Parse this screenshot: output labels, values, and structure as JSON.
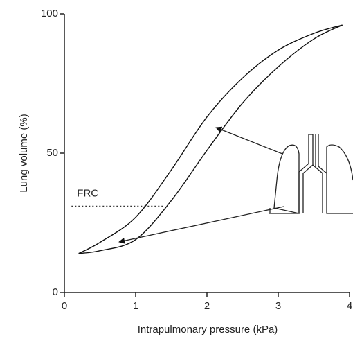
{
  "chart_data": {
    "type": "line",
    "x_label": "Intrapulmonary pressure (kPa)",
    "y_label": "Lung volume (%)",
    "x": [
      0.2,
      0.5,
      1,
      1.5,
      2,
      2.5,
      3,
      3.5,
      3.9
    ],
    "series": [
      {
        "color": "#111111",
        "values": [
          14,
          18,
          27,
          44,
          63,
          77,
          87,
          93,
          96
        ]
      },
      {
        "color": "#111111",
        "values": [
          14,
          15,
          19,
          33,
          51,
          68,
          81,
          91,
          96
        ]
      }
    ],
    "xlim": [
      0,
      4
    ],
    "xticks": [
      0,
      1,
      2,
      3,
      4
    ],
    "ylim": [
      0,
      100
    ],
    "yticks": [
      0,
      50,
      100
    ],
    "grid": false,
    "frc": {
      "label": "FRC",
      "value": 31,
      "x": [
        0.1,
        1.4
      ]
    }
  }
}
